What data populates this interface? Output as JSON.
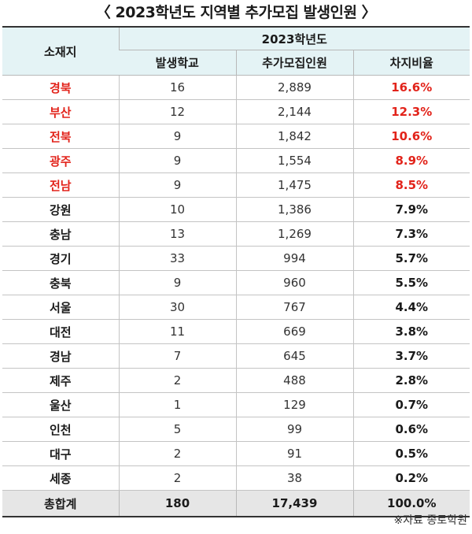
{
  "title": "〈 2023학년도 지역별 추가모집 발생인원 〉",
  "header": {
    "region_label": "소재지",
    "year_label": "2023학년도",
    "columns": [
      "발생학교",
      "추가모집인원",
      "차지비율"
    ]
  },
  "rows": [
    {
      "region": "경북",
      "schools": "16",
      "count": "2,889",
      "rate": "16.6%",
      "highlight": true
    },
    {
      "region": "부산",
      "schools": "12",
      "count": "2,144",
      "rate": "12.3%",
      "highlight": true
    },
    {
      "region": "전북",
      "schools": "9",
      "count": "1,842",
      "rate": "10.6%",
      "highlight": true
    },
    {
      "region": "광주",
      "schools": "9",
      "count": "1,554",
      "rate": "8.9%",
      "highlight": true
    },
    {
      "region": "전남",
      "schools": "9",
      "count": "1,475",
      "rate": "8.5%",
      "highlight": true
    },
    {
      "region": "강원",
      "schools": "10",
      "count": "1,386",
      "rate": "7.9%",
      "highlight": false
    },
    {
      "region": "충남",
      "schools": "13",
      "count": "1,269",
      "rate": "7.3%",
      "highlight": false
    },
    {
      "region": "경기",
      "schools": "33",
      "count": "994",
      "rate": "5.7%",
      "highlight": false
    },
    {
      "region": "충북",
      "schools": "9",
      "count": "960",
      "rate": "5.5%",
      "highlight": false
    },
    {
      "region": "서울",
      "schools": "30",
      "count": "767",
      "rate": "4.4%",
      "highlight": false
    },
    {
      "region": "대전",
      "schools": "11",
      "count": "669",
      "rate": "3.8%",
      "highlight": false
    },
    {
      "region": "경남",
      "schools": "7",
      "count": "645",
      "rate": "3.7%",
      "highlight": false
    },
    {
      "region": "제주",
      "schools": "2",
      "count": "488",
      "rate": "2.8%",
      "highlight": false
    },
    {
      "region": "울산",
      "schools": "1",
      "count": "129",
      "rate": "0.7%",
      "highlight": false
    },
    {
      "region": "인천",
      "schools": "5",
      "count": "99",
      "rate": "0.6%",
      "highlight": false
    },
    {
      "region": "대구",
      "schools": "2",
      "count": "91",
      "rate": "0.5%",
      "highlight": false
    },
    {
      "region": "세종",
      "schools": "2",
      "count": "38",
      "rate": "0.2%",
      "highlight": false
    }
  ],
  "total": {
    "region": "총합계",
    "schools": "180",
    "count": "17,439",
    "rate": "100.0%"
  },
  "source": "※자료 종로학원",
  "colors": {
    "highlight": "#e2231a",
    "header_bg": "#e4f3f5",
    "total_bg": "#e6e6e6"
  }
}
